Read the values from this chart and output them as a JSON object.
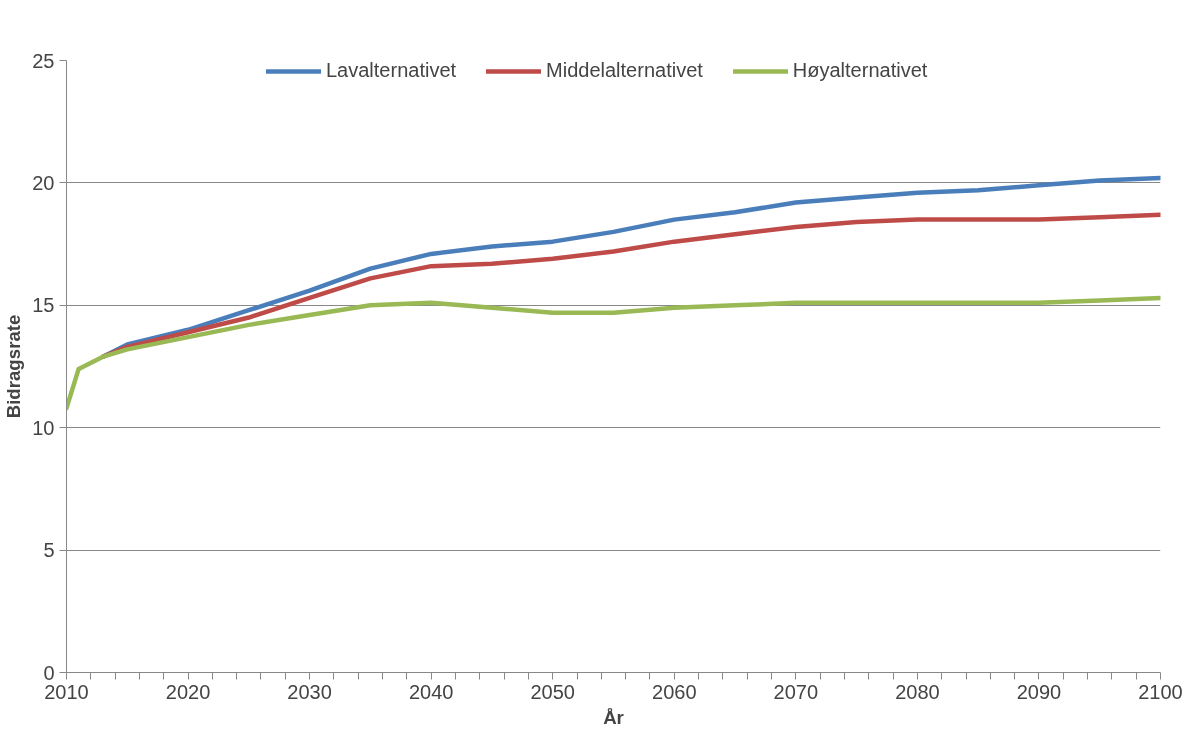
{
  "chart_data": {
    "type": "line",
    "xlabel": "År",
    "ylabel": "Bidragsrate",
    "x": [
      2010,
      2011,
      2013,
      2015,
      2020,
      2025,
      2030,
      2035,
      2040,
      2045,
      2050,
      2055,
      2060,
      2065,
      2070,
      2075,
      2080,
      2085,
      2090,
      2095,
      2100
    ],
    "series": [
      {
        "name": "Lavalternativet",
        "color": "#4a7ebb",
        "values": [
          null,
          null,
          12.9,
          13.4,
          14.0,
          14.8,
          15.6,
          16.5,
          17.1,
          17.4,
          17.6,
          18.0,
          18.5,
          18.8,
          19.2,
          19.4,
          19.6,
          19.7,
          19.9,
          20.1,
          20.2
        ]
      },
      {
        "name": "Middelalternativet",
        "color": "#be4b48",
        "values": [
          null,
          null,
          12.9,
          13.3,
          13.9,
          14.5,
          15.3,
          16.1,
          16.6,
          16.7,
          16.9,
          17.2,
          17.6,
          17.9,
          18.2,
          18.4,
          18.5,
          18.5,
          18.5,
          18.6,
          18.7
        ]
      },
      {
        "name": "Høyalternativet",
        "color": "#98b954",
        "values": [
          10.8,
          12.4,
          12.9,
          13.2,
          13.7,
          14.2,
          14.6,
          15.0,
          15.1,
          14.9,
          14.7,
          14.7,
          14.9,
          15.0,
          15.1,
          15.1,
          15.1,
          15.1,
          15.1,
          15.2,
          15.3
        ]
      }
    ],
    "xlim": [
      2010,
      2100
    ],
    "xticks": [
      2010,
      {
        "value": 2012,
        "label": null
      },
      {
        "value": 2014,
        "label": null
      },
      {
        "value": 2016,
        "label": null
      },
      {
        "value": 2018,
        "label": null
      },
      2020,
      {
        "value": 2022,
        "label": null
      },
      {
        "value": 2024,
        "label": null
      },
      {
        "value": 2026,
        "label": null
      },
      {
        "value": 2028,
        "label": null
      },
      2030,
      {
        "value": 2032,
        "label": null
      },
      {
        "value": 2034,
        "label": null
      },
      {
        "value": 2036,
        "label": null
      },
      {
        "value": 2038,
        "label": null
      },
      2040,
      {
        "value": 2042,
        "label": null
      },
      {
        "value": 2044,
        "label": null
      },
      {
        "value": 2046,
        "label": null
      },
      {
        "value": 2048,
        "label": null
      },
      2050,
      {
        "value": 2052,
        "label": null
      },
      {
        "value": 2054,
        "label": null
      },
      {
        "value": 2056,
        "label": null
      },
      {
        "value": 2058,
        "label": null
      },
      2060,
      {
        "value": 2062,
        "label": null
      },
      {
        "value": 2064,
        "label": null
      },
      {
        "value": 2066,
        "label": null
      },
      {
        "value": 2068,
        "label": null
      },
      2070,
      {
        "value": 2072,
        "label": null
      },
      {
        "value": 2074,
        "label": null
      },
      {
        "value": 2076,
        "label": null
      },
      {
        "value": 2078,
        "label": null
      },
      2080,
      {
        "value": 2082,
        "label": null
      },
      {
        "value": 2084,
        "label": null
      },
      {
        "value": 2086,
        "label": null
      },
      {
        "value": 2088,
        "label": null
      },
      2090,
      {
        "value": 2092,
        "label": null
      },
      {
        "value": 2094,
        "label": null
      },
      {
        "value": 2096,
        "label": null
      },
      {
        "value": 2098,
        "label": null
      },
      2100
    ],
    "ylim": [
      0,
      25
    ],
    "yticks": [
      0,
      5,
      10,
      15,
      20,
      25
    ],
    "grid": "y",
    "legend": "top",
    "marker": "none",
    "line_style": "solid"
  }
}
